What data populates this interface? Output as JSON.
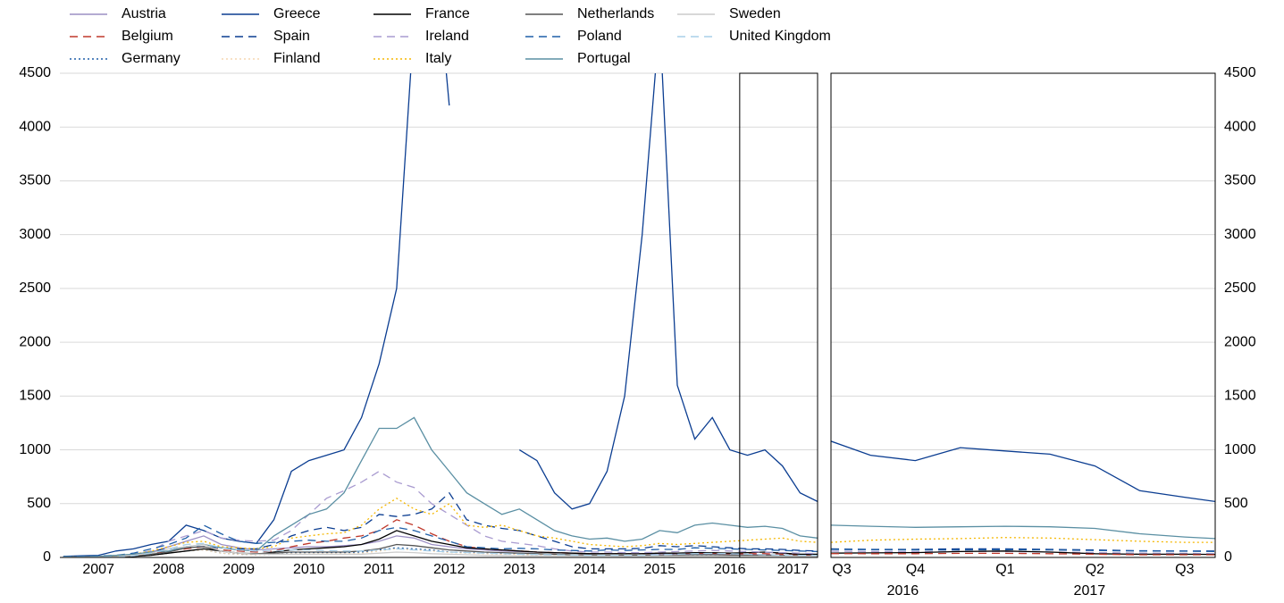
{
  "chart_data": [
    {
      "type": "line",
      "ylim": [
        0,
        4500
      ],
      "yticks": [
        0,
        500,
        1000,
        1500,
        2000,
        2500,
        3000,
        3500,
        4000,
        4500
      ],
      "grid": true,
      "xlim": [
        2006.95,
        2017.75
      ],
      "xticks": [
        {
          "value": 2007.5,
          "label": "2007"
        },
        {
          "value": 2008.5,
          "label": "2008"
        },
        {
          "value": 2009.5,
          "label": "2009"
        },
        {
          "value": 2010.5,
          "label": "2010"
        },
        {
          "value": 2011.5,
          "label": "2011"
        },
        {
          "value": 2012.5,
          "label": "2012"
        },
        {
          "value": 2013.5,
          "label": "2013"
        },
        {
          "value": 2014.5,
          "label": "2014"
        },
        {
          "value": 2015.5,
          "label": "2015"
        },
        {
          "value": 2016.5,
          "label": "2016"
        },
        {
          "value": 2017.4,
          "label": "2017"
        }
      ],
      "x": [
        2007.0,
        2007.25,
        2007.5,
        2007.75,
        2008.0,
        2008.25,
        2008.5,
        2008.75,
        2009.0,
        2009.25,
        2009.5,
        2009.75,
        2010.0,
        2010.25,
        2010.5,
        2010.75,
        2011.0,
        2011.25,
        2011.5,
        2011.75,
        2012.0,
        2012.25,
        2012.5,
        2012.75,
        2013.0,
        2013.25,
        2013.5,
        2013.75,
        2014.0,
        2014.25,
        2014.5,
        2014.75,
        2015.0,
        2015.25,
        2015.5,
        2015.75,
        2016.0,
        2016.25,
        2016.5,
        2016.75,
        2017.0,
        2017.25,
        2017.5,
        2017.75
      ],
      "series": [
        {
          "name": "Austria",
          "color": "#9c8fc4",
          "dash": "solid",
          "values": [
            2,
            2,
            3,
            10,
            30,
            50,
            100,
            150,
            200,
            120,
            90,
            70,
            80,
            90,
            100,
            100,
            110,
            120,
            150,
            200,
            180,
            120,
            100,
            80,
            70,
            60,
            55,
            50,
            45,
            40,
            35,
            35,
            35,
            35,
            30,
            30,
            30,
            30,
            25,
            25,
            25,
            22,
            20,
            20
          ]
        },
        {
          "name": "Belgium",
          "color": "#c0392b",
          "dash": "dashed",
          "values": [
            2,
            2,
            3,
            5,
            20,
            40,
            60,
            80,
            100,
            70,
            60,
            50,
            60,
            100,
            130,
            150,
            180,
            200,
            250,
            350,
            300,
            220,
            150,
            100,
            80,
            70,
            60,
            50,
            45,
            40,
            35,
            35,
            35,
            35,
            40,
            40,
            40,
            40,
            35,
            35,
            35,
            30,
            25,
            25
          ]
        },
        {
          "name": "Germany",
          "color": "#1f5fa8",
          "dash": "dotted",
          "values": [
            1,
            1,
            2,
            4,
            10,
            20,
            40,
            60,
            70,
            40,
            30,
            25,
            30,
            40,
            45,
            45,
            45,
            50,
            70,
            90,
            80,
            70,
            50,
            45,
            40,
            35,
            30,
            25,
            22,
            20,
            18,
            18,
            18,
            18,
            20,
            20,
            22,
            22,
            20,
            18,
            18,
            16,
            14,
            13
          ]
        },
        {
          "name": "Greece",
          "color": "#0b3d91",
          "dash": "solid",
          "values": [
            10,
            15,
            20,
            60,
            80,
            120,
            150,
            300,
            250,
            180,
            150,
            130,
            350,
            800,
            900,
            950,
            1000,
            1300,
            1800,
            2500,
            5000,
            6000,
            4200,
            null,
            null,
            null,
            1000,
            900,
            600,
            450,
            500,
            800,
            1500,
            3000,
            5000,
            1600,
            1100,
            1300,
            1000,
            950,
            1000,
            850,
            600,
            520
          ]
        },
        {
          "name": "Spain",
          "color": "#0b3d91",
          "dash": "dashed",
          "values": [
            3,
            3,
            5,
            10,
            30,
            60,
            80,
            100,
            100,
            90,
            80,
            80,
            120,
            200,
            250,
            280,
            250,
            280,
            400,
            380,
            400,
            450,
            600,
            350,
            300,
            270,
            250,
            200,
            150,
            100,
            80,
            80,
            80,
            85,
            110,
            100,
            110,
            100,
            90,
            80,
            80,
            75,
            65,
            60
          ]
        },
        {
          "name": "Finland",
          "color": "#f5d7b0",
          "dash": "dotted",
          "values": [
            1,
            1,
            2,
            3,
            10,
            20,
            40,
            60,
            70,
            40,
            30,
            25,
            30,
            35,
            35,
            35,
            35,
            40,
            60,
            80,
            70,
            60,
            45,
            40,
            35,
            30,
            28,
            25,
            22,
            20,
            20,
            20,
            22,
            22,
            25,
            25,
            25,
            25,
            22,
            20,
            20,
            18,
            16,
            15
          ]
        },
        {
          "name": "France",
          "color": "#000000",
          "dash": "solid",
          "values": [
            2,
            2,
            3,
            5,
            10,
            20,
            40,
            60,
            80,
            60,
            40,
            30,
            50,
            70,
            80,
            90,
            100,
            120,
            170,
            250,
            200,
            150,
            120,
            90,
            80,
            70,
            60,
            50,
            45,
            40,
            35,
            35,
            35,
            35,
            40,
            40,
            45,
            45,
            40,
            45,
            50,
            40,
            30,
            30
          ]
        },
        {
          "name": "Ireland",
          "color": "#a99bd0",
          "dash": "dashed",
          "values": [
            3,
            3,
            5,
            10,
            30,
            60,
            150,
            200,
            250,
            180,
            160,
            150,
            160,
            250,
            400,
            550,
            620,
            700,
            800,
            700,
            650,
            500,
            400,
            300,
            200,
            150,
            130,
            110,
            80,
            60,
            50,
            50,
            45,
            45,
            50,
            55,
            60,
            65,
            60,
            55,
            50,
            45,
            40,
            35
          ]
        },
        {
          "name": "Italy",
          "color": "#f5b700",
          "dash": "dotted",
          "values": [
            5,
            5,
            8,
            15,
            30,
            60,
            100,
            140,
            150,
            100,
            90,
            80,
            100,
            180,
            200,
            220,
            230,
            300,
            450,
            550,
            450,
            400,
            500,
            300,
            280,
            300,
            250,
            200,
            180,
            150,
            120,
            110,
            100,
            110,
            130,
            120,
            130,
            140,
            150,
            160,
            170,
            180,
            150,
            140
          ]
        },
        {
          "name": "Netherlands",
          "color": "#555555",
          "dash": "solid",
          "values": [
            2,
            2,
            3,
            5,
            15,
            30,
            50,
            90,
            100,
            60,
            40,
            35,
            40,
            50,
            50,
            50,
            50,
            60,
            80,
            120,
            110,
            90,
            70,
            60,
            50,
            45,
            40,
            35,
            30,
            25,
            22,
            20,
            20,
            20,
            22,
            22,
            25,
            25,
            22,
            20,
            20,
            18,
            16,
            15
          ]
        },
        {
          "name": "Poland",
          "color": "#1f5fa8",
          "dash": "dashed",
          "values": [
            10,
            10,
            15,
            20,
            40,
            80,
            120,
            180,
            300,
            220,
            150,
            130,
            140,
            150,
            160,
            150,
            150,
            180,
            250,
            280,
            250,
            200,
            150,
            100,
            90,
            80,
            85,
            80,
            70,
            65,
            60,
            70,
            65,
            70,
            75,
            75,
            90,
            85,
            80,
            75,
            70,
            65,
            60,
            55
          ]
        },
        {
          "name": "Portugal",
          "color": "#5a8fa3",
          "dash": "solid",
          "values": [
            5,
            5,
            10,
            20,
            30,
            50,
            60,
            100,
            120,
            90,
            70,
            60,
            200,
            300,
            400,
            450,
            600,
            900,
            1200,
            1200,
            1300,
            1000,
            800,
            600,
            500,
            400,
            450,
            350,
            250,
            200,
            170,
            180,
            150,
            170,
            250,
            230,
            300,
            320,
            300,
            280,
            290,
            270,
            200,
            180
          ]
        },
        {
          "name": "Sweden",
          "color": "#cccccc",
          "dash": "solid",
          "values": [
            2,
            2,
            3,
            5,
            20,
            40,
            80,
            100,
            120,
            60,
            40,
            30,
            30,
            30,
            30,
            30,
            30,
            30,
            40,
            50,
            45,
            35,
            30,
            25,
            20,
            18,
            16,
            15,
            15,
            14,
            13,
            13,
            12,
            12,
            13,
            13,
            13,
            13,
            12,
            12,
            12,
            11,
            10,
            10
          ]
        },
        {
          "name": "United Kingdom",
          "color": "#a8cfe8",
          "dash": "dashed",
          "values": [
            2,
            2,
            3,
            5,
            15,
            40,
            80,
            120,
            130,
            90,
            70,
            60,
            60,
            70,
            70,
            65,
            60,
            60,
            70,
            80,
            70,
            60,
            50,
            45,
            40,
            35,
            30,
            28,
            25,
            22,
            20,
            20,
            20,
            20,
            25,
            30,
            35,
            38,
            35,
            30,
            25,
            22,
            20,
            20
          ]
        }
      ]
    },
    {
      "type": "line",
      "ylim": [
        0,
        4500
      ],
      "yticks": [
        0,
        500,
        1000,
        1500,
        2000,
        2500,
        3000,
        3500,
        4000,
        4500
      ],
      "grid": true,
      "xlim": [
        2016.64,
        2017.71
      ],
      "xticks": [
        {
          "value": 2016.67,
          "label": "Q3"
        },
        {
          "value": 2016.875,
          "label": "Q4"
        },
        {
          "value": 2017.125,
          "label": "Q1"
        },
        {
          "value": 2017.375,
          "label": "Q2"
        },
        {
          "value": 2017.625,
          "label": "Q3"
        }
      ],
      "xticks2": [
        {
          "value": 2016.84,
          "label": "2016"
        },
        {
          "value": 2017.36,
          "label": "2017"
        }
      ],
      "x": [
        2016.64,
        2016.75,
        2016.875,
        2017.0,
        2017.125,
        2017.25,
        2017.375,
        2017.5,
        2017.625,
        2017.71
      ],
      "series": [
        {
          "color": "#0b3d91",
          "dash": "solid",
          "values": [
            1080,
            950,
            900,
            1020,
            990,
            960,
            850,
            620,
            560,
            520
          ]
        },
        {
          "color": "#5a8fa3",
          "dash": "solid",
          "values": [
            300,
            290,
            280,
            285,
            290,
            285,
            270,
            220,
            190,
            175
          ]
        },
        {
          "color": "#f5b700",
          "dash": "dotted",
          "values": [
            140,
            160,
            170,
            175,
            185,
            180,
            165,
            150,
            140,
            140
          ]
        },
        {
          "color": "#0b3d91",
          "dash": "dashed",
          "values": [
            80,
            75,
            75,
            80,
            80,
            75,
            70,
            62,
            60,
            60
          ]
        },
        {
          "color": "#1f5fa8",
          "dash": "dashed",
          "values": [
            75,
            72,
            70,
            70,
            72,
            70,
            65,
            60,
            58,
            55
          ]
        },
        {
          "color": "#a99bd0",
          "dash": "dashed",
          "values": [
            58,
            55,
            52,
            55,
            55,
            50,
            45,
            40,
            38,
            35
          ]
        },
        {
          "color": "#000000",
          "dash": "solid",
          "values": [
            40,
            42,
            45,
            55,
            60,
            50,
            35,
            30,
            30,
            28
          ]
        },
        {
          "color": "#c0392b",
          "dash": "dashed",
          "values": [
            36,
            35,
            35,
            38,
            38,
            35,
            30,
            25,
            25,
            25
          ]
        }
      ]
    }
  ]
}
